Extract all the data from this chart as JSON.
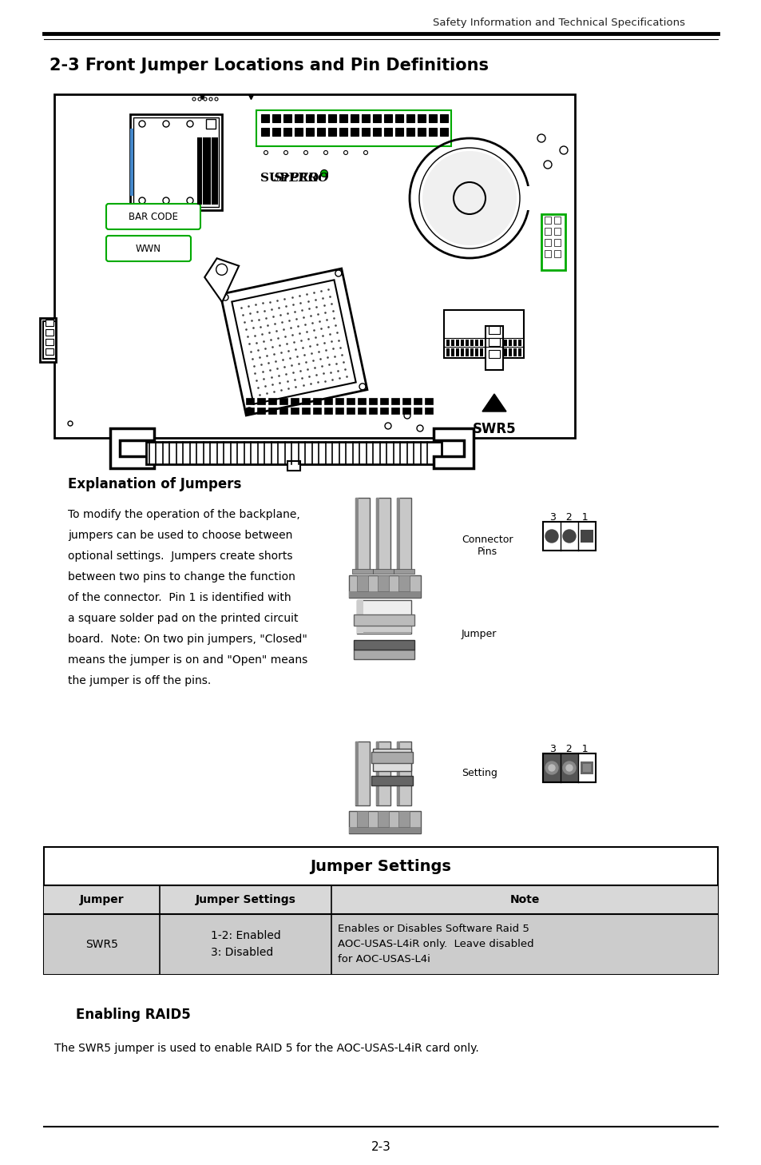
{
  "header_text": "Safety Information and Technical Specifications",
  "section_title": "2-3 Front Jumper Locations and Pin Definitions",
  "explanation_title": "Explanation of Jumpers",
  "connector_label": "Connector\nPins",
  "jumper_label": "Jumper",
  "setting_label": "Setting",
  "table_title": "Jumper Settings",
  "table_headers": [
    "Jumper",
    "Jumper Settings",
    "Note"
  ],
  "table_row_col1": "SWR5",
  "table_row_col2": "1-2: Enabled\n3: Disabled",
  "table_row_col3_line1": "Enables or Disables Software Raid 5",
  "table_row_col3_line2": "AOC-USAS-L4iR only.  Leave disabled",
  "table_row_col3_line3": "for AOC-USAS-L4i",
  "enabling_title": "Enabling RAID5",
  "enabling_text": "The SWR5 jumper is used to enable RAID 5 for the AOC-USAS-L4iR card only.",
  "page_number": "2-3",
  "bar_code_label": "BAR CODE",
  "wwn_label": "WWN",
  "swr5_label": "SWR5",
  "bg_color": "#ffffff",
  "text_color": "#000000",
  "table_header_bg": "#d8d8d8",
  "table_row_bg": "#cccccc",
  "expl_lines": [
    "To modify the operation of the backplane,",
    "jumpers can be used to choose between",
    "optional settings.  Jumpers create shorts",
    "between two pins to change the function",
    "of the connector.  Pin 1 is identified with",
    "a square solder pad on the printed circuit",
    "board.  Note: On two pin jumpers, \"Closed\"",
    "means the jumper is on and \"Open\" means",
    "the jumper is off the pins."
  ]
}
